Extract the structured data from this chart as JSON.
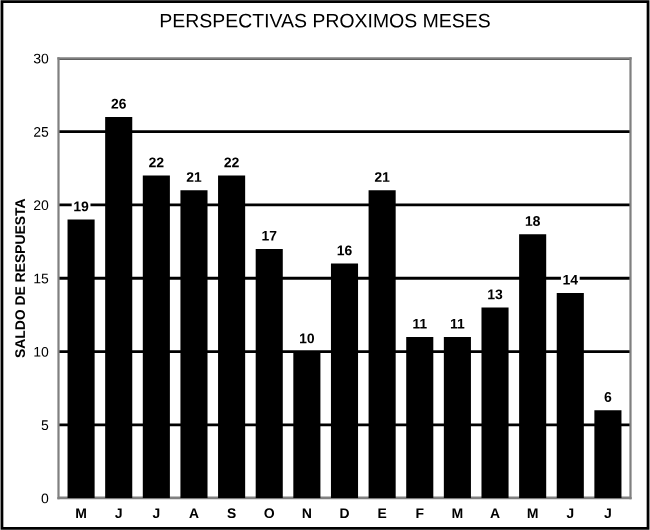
{
  "chart_data": {
    "type": "bar",
    "title": "PERSPECTIVAS PROXIMOS MESES",
    "ylabel": "SALDO DE RESPUESTA",
    "categories": [
      "M",
      "J",
      "J",
      "A",
      "S",
      "O",
      "N",
      "D",
      "E",
      "F",
      "M",
      "A",
      "M",
      "J",
      "J"
    ],
    "values": [
      19,
      26,
      22,
      21,
      22,
      17,
      10,
      16,
      21,
      11,
      11,
      13,
      18,
      14,
      6
    ],
    "color": "#000000",
    "ylim": [
      0,
      30
    ],
    "yticks": [
      0,
      5,
      10,
      15,
      20,
      25,
      30
    ],
    "grid": "y",
    "data_labels": true
  }
}
